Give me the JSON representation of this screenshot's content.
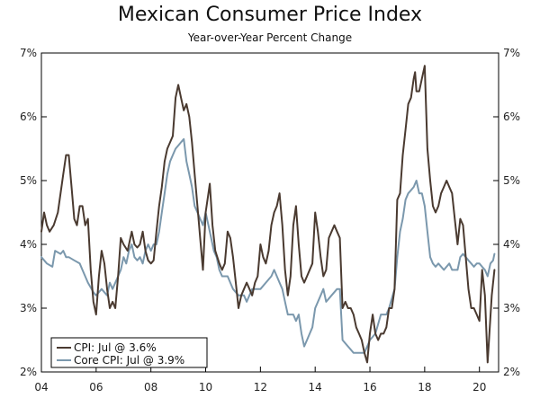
{
  "chart_data": {
    "type": "line",
    "title": "Mexican Consumer Price Index",
    "subtitle": "Year-over-Year Percent Change",
    "xlabel": "",
    "ylabel": "",
    "xlim": [
      2004.0,
      2020.7
    ],
    "ylim": [
      2,
      7
    ],
    "grid": false,
    "legend_position": "bottom-left",
    "x_ticks": [
      {
        "value": 2004,
        "label": "04"
      },
      {
        "value": 2006,
        "label": "06"
      },
      {
        "value": 2008,
        "label": "08"
      },
      {
        "value": 2010,
        "label": "10"
      },
      {
        "value": 2012,
        "label": "12"
      },
      {
        "value": 2014,
        "label": "14"
      },
      {
        "value": 2016,
        "label": "16"
      },
      {
        "value": 2018,
        "label": "18"
      },
      {
        "value": 2020,
        "label": "20"
      }
    ],
    "y_ticks": [
      {
        "value": 2,
        "label": "2%"
      },
      {
        "value": 3,
        "label": "3%"
      },
      {
        "value": 4,
        "label": "4%"
      },
      {
        "value": 5,
        "label": "5%"
      },
      {
        "value": 6,
        "label": "6%"
      },
      {
        "value": 7,
        "label": "7%"
      }
    ],
    "series": [
      {
        "name": "CPI: Jul @ 3.6%",
        "color": "#4a3a30",
        "points": [
          [
            2004.0,
            4.2
          ],
          [
            2004.1,
            4.5
          ],
          [
            2004.2,
            4.3
          ],
          [
            2004.3,
            4.2
          ],
          [
            2004.45,
            4.3
          ],
          [
            2004.6,
            4.5
          ],
          [
            2004.7,
            4.8
          ],
          [
            2004.8,
            5.1
          ],
          [
            2004.9,
            5.4
          ],
          [
            2005.0,
            5.4
          ],
          [
            2005.1,
            4.9
          ],
          [
            2005.2,
            4.4
          ],
          [
            2005.3,
            4.3
          ],
          [
            2005.4,
            4.6
          ],
          [
            2005.5,
            4.6
          ],
          [
            2005.6,
            4.3
          ],
          [
            2005.7,
            4.4
          ],
          [
            2005.8,
            3.6
          ],
          [
            2005.9,
            3.1
          ],
          [
            2006.0,
            2.9
          ],
          [
            2006.1,
            3.5
          ],
          [
            2006.2,
            3.9
          ],
          [
            2006.3,
            3.7
          ],
          [
            2006.4,
            3.3
          ],
          [
            2006.5,
            3.0
          ],
          [
            2006.6,
            3.1
          ],
          [
            2006.7,
            3.0
          ],
          [
            2006.8,
            3.5
          ],
          [
            2006.9,
            4.1
          ],
          [
            2007.0,
            4.0
          ],
          [
            2007.15,
            3.9
          ],
          [
            2007.3,
            4.2
          ],
          [
            2007.4,
            4.0
          ],
          [
            2007.5,
            3.95
          ],
          [
            2007.6,
            4.0
          ],
          [
            2007.7,
            4.2
          ],
          [
            2007.8,
            3.9
          ],
          [
            2007.9,
            3.75
          ],
          [
            2008.0,
            3.7
          ],
          [
            2008.1,
            3.75
          ],
          [
            2008.2,
            4.2
          ],
          [
            2008.3,
            4.6
          ],
          [
            2008.4,
            4.9
          ],
          [
            2008.5,
            5.3
          ],
          [
            2008.6,
            5.5
          ],
          [
            2008.7,
            5.6
          ],
          [
            2008.8,
            5.7
          ],
          [
            2008.9,
            6.3
          ],
          [
            2009.0,
            6.5
          ],
          [
            2009.1,
            6.3
          ],
          [
            2009.2,
            6.1
          ],
          [
            2009.3,
            6.2
          ],
          [
            2009.4,
            6.0
          ],
          [
            2009.5,
            5.6
          ],
          [
            2009.6,
            5.1
          ],
          [
            2009.7,
            4.6
          ],
          [
            2009.8,
            4.1
          ],
          [
            2009.9,
            3.6
          ],
          [
            2010.0,
            4.5
          ],
          [
            2010.1,
            4.8
          ],
          [
            2010.15,
            4.95
          ],
          [
            2010.25,
            4.3
          ],
          [
            2010.35,
            3.9
          ],
          [
            2010.5,
            3.7
          ],
          [
            2010.6,
            3.6
          ],
          [
            2010.7,
            3.7
          ],
          [
            2010.8,
            4.2
          ],
          [
            2010.9,
            4.1
          ],
          [
            2011.0,
            3.8
          ],
          [
            2011.1,
            3.4
          ],
          [
            2011.2,
            3.0
          ],
          [
            2011.3,
            3.2
          ],
          [
            2011.4,
            3.3
          ],
          [
            2011.5,
            3.4
          ],
          [
            2011.6,
            3.3
          ],
          [
            2011.7,
            3.2
          ],
          [
            2011.8,
            3.4
          ],
          [
            2011.9,
            3.5
          ],
          [
            2012.0,
            4.0
          ],
          [
            2012.1,
            3.8
          ],
          [
            2012.2,
            3.7
          ],
          [
            2012.3,
            3.9
          ],
          [
            2012.4,
            4.3
          ],
          [
            2012.5,
            4.5
          ],
          [
            2012.6,
            4.6
          ],
          [
            2012.7,
            4.8
          ],
          [
            2012.8,
            4.3
          ],
          [
            2012.9,
            3.6
          ],
          [
            2013.0,
            3.2
          ],
          [
            2013.1,
            3.5
          ],
          [
            2013.2,
            4.3
          ],
          [
            2013.3,
            4.6
          ],
          [
            2013.4,
            4.0
          ],
          [
            2013.5,
            3.5
          ],
          [
            2013.6,
            3.4
          ],
          [
            2013.7,
            3.5
          ],
          [
            2013.8,
            3.6
          ],
          [
            2013.9,
            3.7
          ],
          [
            2014.0,
            4.5
          ],
          [
            2014.1,
            4.2
          ],
          [
            2014.2,
            3.8
          ],
          [
            2014.3,
            3.5
          ],
          [
            2014.4,
            3.6
          ],
          [
            2014.5,
            4.1
          ],
          [
            2014.6,
            4.2
          ],
          [
            2014.7,
            4.3
          ],
          [
            2014.8,
            4.2
          ],
          [
            2014.9,
            4.1
          ],
          [
            2015.0,
            3.0
          ],
          [
            2015.1,
            3.1
          ],
          [
            2015.2,
            3.0
          ],
          [
            2015.3,
            3.0
          ],
          [
            2015.4,
            2.9
          ],
          [
            2015.5,
            2.7
          ],
          [
            2015.6,
            2.6
          ],
          [
            2015.7,
            2.5
          ],
          [
            2015.8,
            2.3
          ],
          [
            2015.9,
            2.15
          ],
          [
            2016.0,
            2.6
          ],
          [
            2016.1,
            2.9
          ],
          [
            2016.2,
            2.6
          ],
          [
            2016.3,
            2.5
          ],
          [
            2016.4,
            2.6
          ],
          [
            2016.5,
            2.6
          ],
          [
            2016.6,
            2.7
          ],
          [
            2016.7,
            3.0
          ],
          [
            2016.8,
            3.0
          ],
          [
            2016.9,
            3.3
          ],
          [
            2017.0,
            4.7
          ],
          [
            2017.1,
            4.8
          ],
          [
            2017.2,
            5.4
          ],
          [
            2017.3,
            5.8
          ],
          [
            2017.4,
            6.2
          ],
          [
            2017.5,
            6.3
          ],
          [
            2017.6,
            6.6
          ],
          [
            2017.65,
            6.7
          ],
          [
            2017.7,
            6.4
          ],
          [
            2017.8,
            6.4
          ],
          [
            2017.9,
            6.6
          ],
          [
            2018.0,
            6.8
          ],
          [
            2018.1,
            5.5
          ],
          [
            2018.2,
            5.0
          ],
          [
            2018.3,
            4.6
          ],
          [
            2018.4,
            4.5
          ],
          [
            2018.5,
            4.6
          ],
          [
            2018.6,
            4.8
          ],
          [
            2018.7,
            4.9
          ],
          [
            2018.8,
            5.0
          ],
          [
            2018.9,
            4.9
          ],
          [
            2019.0,
            4.8
          ],
          [
            2019.1,
            4.4
          ],
          [
            2019.2,
            4.0
          ],
          [
            2019.3,
            4.4
          ],
          [
            2019.4,
            4.3
          ],
          [
            2019.5,
            3.8
          ],
          [
            2019.6,
            3.3
          ],
          [
            2019.7,
            3.0
          ],
          [
            2019.8,
            3.0
          ],
          [
            2019.9,
            2.9
          ],
          [
            2020.0,
            2.8
          ],
          [
            2020.1,
            3.6
          ],
          [
            2020.2,
            3.2
          ],
          [
            2020.3,
            2.15
          ],
          [
            2020.45,
            3.2
          ],
          [
            2020.55,
            3.6
          ]
        ]
      },
      {
        "name": "Core CPI: Jul @ 3.9%",
        "color": "#7b98ad",
        "points": [
          [
            2004.0,
            3.8
          ],
          [
            2004.2,
            3.7
          ],
          [
            2004.4,
            3.65
          ],
          [
            2004.5,
            3.9
          ],
          [
            2004.7,
            3.85
          ],
          [
            2004.8,
            3.9
          ],
          [
            2004.9,
            3.8
          ],
          [
            2005.0,
            3.8
          ],
          [
            2005.2,
            3.75
          ],
          [
            2005.4,
            3.7
          ],
          [
            2005.5,
            3.6
          ],
          [
            2005.7,
            3.4
          ],
          [
            2005.9,
            3.25
          ],
          [
            2006.0,
            3.2
          ],
          [
            2006.2,
            3.3
          ],
          [
            2006.4,
            3.2
          ],
          [
            2006.5,
            3.4
          ],
          [
            2006.6,
            3.3
          ],
          [
            2006.8,
            3.5
          ],
          [
            2006.9,
            3.6
          ],
          [
            2007.0,
            3.8
          ],
          [
            2007.1,
            3.7
          ],
          [
            2007.2,
            3.9
          ],
          [
            2007.3,
            4.0
          ],
          [
            2007.4,
            3.8
          ],
          [
            2007.5,
            3.75
          ],
          [
            2007.6,
            3.8
          ],
          [
            2007.7,
            3.7
          ],
          [
            2007.8,
            3.9
          ],
          [
            2007.9,
            4.0
          ],
          [
            2008.0,
            3.9
          ],
          [
            2008.1,
            4.0
          ],
          [
            2008.2,
            4.0
          ],
          [
            2008.3,
            4.2
          ],
          [
            2008.4,
            4.5
          ],
          [
            2008.5,
            4.8
          ],
          [
            2008.6,
            5.1
          ],
          [
            2008.7,
            5.3
          ],
          [
            2008.8,
            5.4
          ],
          [
            2008.9,
            5.5
          ],
          [
            2009.0,
            5.55
          ],
          [
            2009.1,
            5.6
          ],
          [
            2009.2,
            5.65
          ],
          [
            2009.3,
            5.3
          ],
          [
            2009.4,
            5.1
          ],
          [
            2009.5,
            4.9
          ],
          [
            2009.6,
            4.6
          ],
          [
            2009.7,
            4.5
          ],
          [
            2009.8,
            4.4
          ],
          [
            2009.9,
            4.3
          ],
          [
            2010.0,
            4.5
          ],
          [
            2010.1,
            4.3
          ],
          [
            2010.2,
            4.1
          ],
          [
            2010.3,
            3.9
          ],
          [
            2010.4,
            3.8
          ],
          [
            2010.5,
            3.6
          ],
          [
            2010.6,
            3.5
          ],
          [
            2010.8,
            3.5
          ],
          [
            2010.9,
            3.4
          ],
          [
            2011.0,
            3.3
          ],
          [
            2011.2,
            3.2
          ],
          [
            2011.4,
            3.2
          ],
          [
            2011.5,
            3.1
          ],
          [
            2011.7,
            3.3
          ],
          [
            2011.9,
            3.3
          ],
          [
            2012.0,
            3.3
          ],
          [
            2012.2,
            3.4
          ],
          [
            2012.4,
            3.5
          ],
          [
            2012.5,
            3.6
          ],
          [
            2012.6,
            3.5
          ],
          [
            2012.7,
            3.4
          ],
          [
            2012.8,
            3.3
          ],
          [
            2012.9,
            3.1
          ],
          [
            2013.0,
            2.9
          ],
          [
            2013.2,
            2.9
          ],
          [
            2013.3,
            2.8
          ],
          [
            2013.4,
            2.9
          ],
          [
            2013.5,
            2.6
          ],
          [
            2013.6,
            2.4
          ],
          [
            2013.7,
            2.5
          ],
          [
            2013.8,
            2.6
          ],
          [
            2013.9,
            2.7
          ],
          [
            2014.0,
            3.0
          ],
          [
            2014.2,
            3.2
          ],
          [
            2014.3,
            3.3
          ],
          [
            2014.4,
            3.1
          ],
          [
            2014.6,
            3.2
          ],
          [
            2014.8,
            3.3
          ],
          [
            2014.9,
            3.3
          ],
          [
            2015.0,
            2.5
          ],
          [
            2015.2,
            2.4
          ],
          [
            2015.4,
            2.3
          ],
          [
            2015.6,
            2.3
          ],
          [
            2015.8,
            2.3
          ],
          [
            2015.9,
            2.4
          ],
          [
            2016.0,
            2.5
          ],
          [
            2016.2,
            2.6
          ],
          [
            2016.4,
            2.9
          ],
          [
            2016.6,
            2.9
          ],
          [
            2016.7,
            3.0
          ],
          [
            2016.9,
            3.3
          ],
          [
            2017.0,
            3.8
          ],
          [
            2017.1,
            4.2
          ],
          [
            2017.2,
            4.4
          ],
          [
            2017.3,
            4.7
          ],
          [
            2017.4,
            4.8
          ],
          [
            2017.5,
            4.85
          ],
          [
            2017.6,
            4.9
          ],
          [
            2017.7,
            5.0
          ],
          [
            2017.8,
            4.8
          ],
          [
            2017.9,
            4.8
          ],
          [
            2018.0,
            4.6
          ],
          [
            2018.1,
            4.2
          ],
          [
            2018.2,
            3.8
          ],
          [
            2018.3,
            3.7
          ],
          [
            2018.4,
            3.65
          ],
          [
            2018.5,
            3.7
          ],
          [
            2018.7,
            3.6
          ],
          [
            2018.9,
            3.7
          ],
          [
            2019.0,
            3.6
          ],
          [
            2019.2,
            3.6
          ],
          [
            2019.3,
            3.8
          ],
          [
            2019.4,
            3.85
          ],
          [
            2019.5,
            3.8
          ],
          [
            2019.6,
            3.75
          ],
          [
            2019.7,
            3.7
          ],
          [
            2019.8,
            3.65
          ],
          [
            2019.9,
            3.7
          ],
          [
            2020.0,
            3.7
          ],
          [
            2020.1,
            3.65
          ],
          [
            2020.2,
            3.6
          ],
          [
            2020.3,
            3.5
          ],
          [
            2020.4,
            3.7
          ],
          [
            2020.5,
            3.75
          ],
          [
            2020.55,
            3.85
          ]
        ]
      }
    ]
  }
}
